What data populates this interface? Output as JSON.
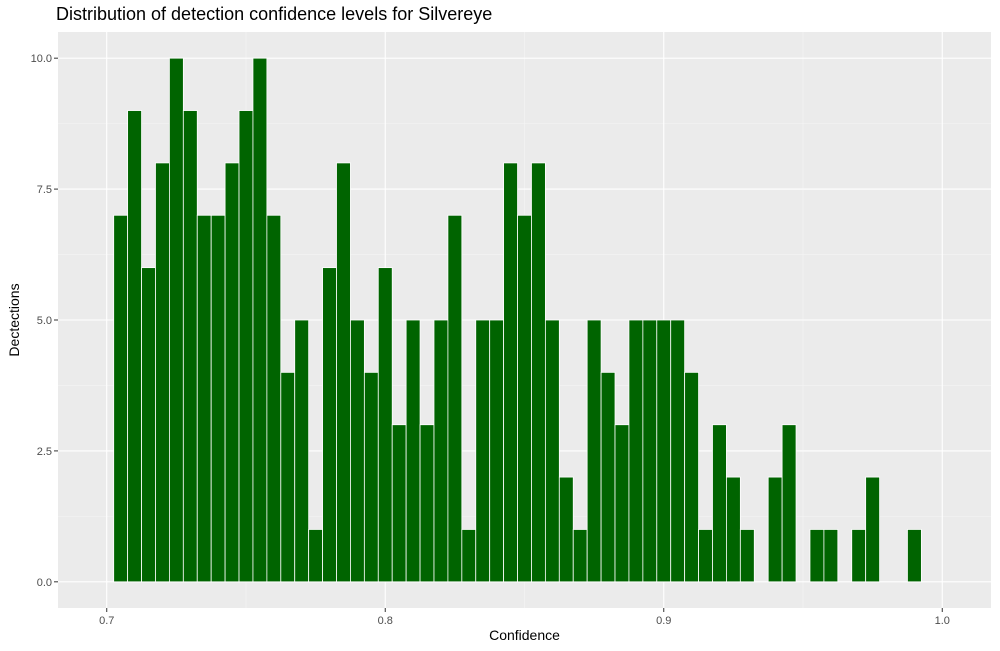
{
  "chart_data": {
    "type": "bar",
    "title": "Distribution of detection confidence levels for Silvereye",
    "xlabel": "Confidence",
    "ylabel": "Dectections",
    "xlim": [
      0.6825,
      1.0175
    ],
    "ylim": [
      -0.5,
      10.5
    ],
    "x_ticks": [
      {
        "value": 0.7,
        "label": "0.7"
      },
      {
        "value": 0.8,
        "label": "0.8"
      },
      {
        "value": 0.9,
        "label": "0.9"
      },
      {
        "value": 1.0,
        "label": "1.0"
      }
    ],
    "y_ticks": [
      {
        "value": 0,
        "label": "0.0"
      },
      {
        "value": 2.5,
        "label": "2.5"
      },
      {
        "value": 5,
        "label": "5.0"
      },
      {
        "value": 7.5,
        "label": "7.5"
      },
      {
        "value": 10,
        "label": "10.0"
      }
    ],
    "bin_width": 0.005,
    "bars": [
      {
        "x": 0.705,
        "count": 7
      },
      {
        "x": 0.71,
        "count": 9
      },
      {
        "x": 0.715,
        "count": 6
      },
      {
        "x": 0.72,
        "count": 8
      },
      {
        "x": 0.725,
        "count": 10
      },
      {
        "x": 0.73,
        "count": 9
      },
      {
        "x": 0.735,
        "count": 7
      },
      {
        "x": 0.74,
        "count": 7
      },
      {
        "x": 0.745,
        "count": 8
      },
      {
        "x": 0.75,
        "count": 9
      },
      {
        "x": 0.755,
        "count": 10
      },
      {
        "x": 0.76,
        "count": 7
      },
      {
        "x": 0.765,
        "count": 4
      },
      {
        "x": 0.77,
        "count": 5
      },
      {
        "x": 0.775,
        "count": 1
      },
      {
        "x": 0.78,
        "count": 6
      },
      {
        "x": 0.785,
        "count": 8
      },
      {
        "x": 0.79,
        "count": 5
      },
      {
        "x": 0.795,
        "count": 4
      },
      {
        "x": 0.8,
        "count": 6
      },
      {
        "x": 0.805,
        "count": 3
      },
      {
        "x": 0.81,
        "count": 5
      },
      {
        "x": 0.815,
        "count": 3
      },
      {
        "x": 0.82,
        "count": 5
      },
      {
        "x": 0.825,
        "count": 7
      },
      {
        "x": 0.83,
        "count": 1
      },
      {
        "x": 0.835,
        "count": 5
      },
      {
        "x": 0.84,
        "count": 5
      },
      {
        "x": 0.845,
        "count": 8
      },
      {
        "x": 0.85,
        "count": 7
      },
      {
        "x": 0.855,
        "count": 8
      },
      {
        "x": 0.86,
        "count": 5
      },
      {
        "x": 0.865,
        "count": 2
      },
      {
        "x": 0.87,
        "count": 1
      },
      {
        "x": 0.875,
        "count": 5
      },
      {
        "x": 0.88,
        "count": 4
      },
      {
        "x": 0.885,
        "count": 3
      },
      {
        "x": 0.89,
        "count": 5
      },
      {
        "x": 0.895,
        "count": 5
      },
      {
        "x": 0.9,
        "count": 5
      },
      {
        "x": 0.905,
        "count": 5
      },
      {
        "x": 0.91,
        "count": 4
      },
      {
        "x": 0.915,
        "count": 1
      },
      {
        "x": 0.92,
        "count": 3
      },
      {
        "x": 0.925,
        "count": 2
      },
      {
        "x": 0.93,
        "count": 1
      },
      {
        "x": 0.94,
        "count": 2
      },
      {
        "x": 0.945,
        "count": 3
      },
      {
        "x": 0.955,
        "count": 1
      },
      {
        "x": 0.96,
        "count": 1
      },
      {
        "x": 0.97,
        "count": 1
      },
      {
        "x": 0.975,
        "count": 2
      },
      {
        "x": 0.99,
        "count": 1
      }
    ],
    "grid": true,
    "legend": "none",
    "colors": {
      "bar_fill": "#006400",
      "bar_outline": "#ffffff",
      "panel_background": "#ebebeb",
      "grid_major": "#ffffff",
      "grid_minor": "#f5f5f5"
    }
  }
}
